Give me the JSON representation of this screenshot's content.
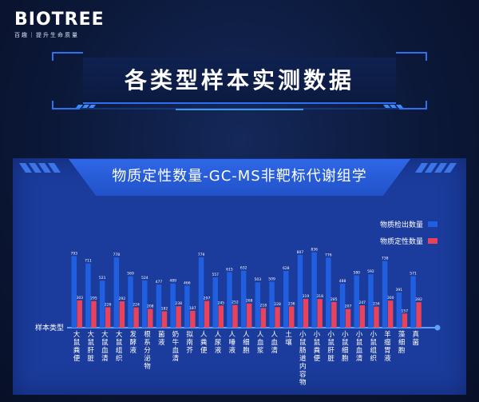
{
  "brand": {
    "logo": "BIOTREE",
    "tagline": "百趣｜提升生命质量"
  },
  "page_title": "各类型样本实测数据",
  "panel_title": "物质定性数量-GC-MS非靶标代谢组学",
  "colors": {
    "series_detected": "#1f5fe0",
    "series_qualitative": "#e8435a",
    "panel_bg": "#1b3c9c",
    "accent": "#2f6ff0"
  },
  "chart_data": {
    "type": "bar",
    "xlabel": "样本类型",
    "categories": [
      "大鼠粪便",
      "大鼠肝脏",
      "大鼠血清",
      "大鼠组织",
      "发酵液",
      "根系分泌物",
      "菌液",
      "奶牛血清",
      "拟南芥",
      "人粪便",
      "人尿液",
      "人唾液",
      "人细胞",
      "人血浆",
      "人血清",
      "土壤",
      "小鼠肠道内容物",
      "小鼠粪便",
      "小鼠肝脏",
      "小鼠细胞",
      "小鼠血清",
      "小鼠组织",
      "羊瘤胃液",
      "藻细胞",
      "真菌"
    ],
    "series": [
      {
        "name": "物质检出数量",
        "values": [
          793,
          711,
          521,
          778,
          569,
          524,
          477,
          489,
          466,
          779,
          557,
          615,
          632,
          503,
          509,
          628,
          807,
          836,
          776,
          488,
          580,
          592,
          738,
          391,
          571
        ]
      },
      {
        "name": "物质定性数量",
        "values": [
          303,
          295,
          226,
          292,
          224,
          208,
          182,
          238,
          187,
          297,
          245,
          252,
          268,
          218,
          228,
          236,
          319,
          318,
          285,
          207,
          247,
          234,
          300,
          157,
          282
        ]
      }
    ],
    "legend_position": "top-right",
    "ylim": [
      0,
      900
    ],
    "grid": false
  }
}
